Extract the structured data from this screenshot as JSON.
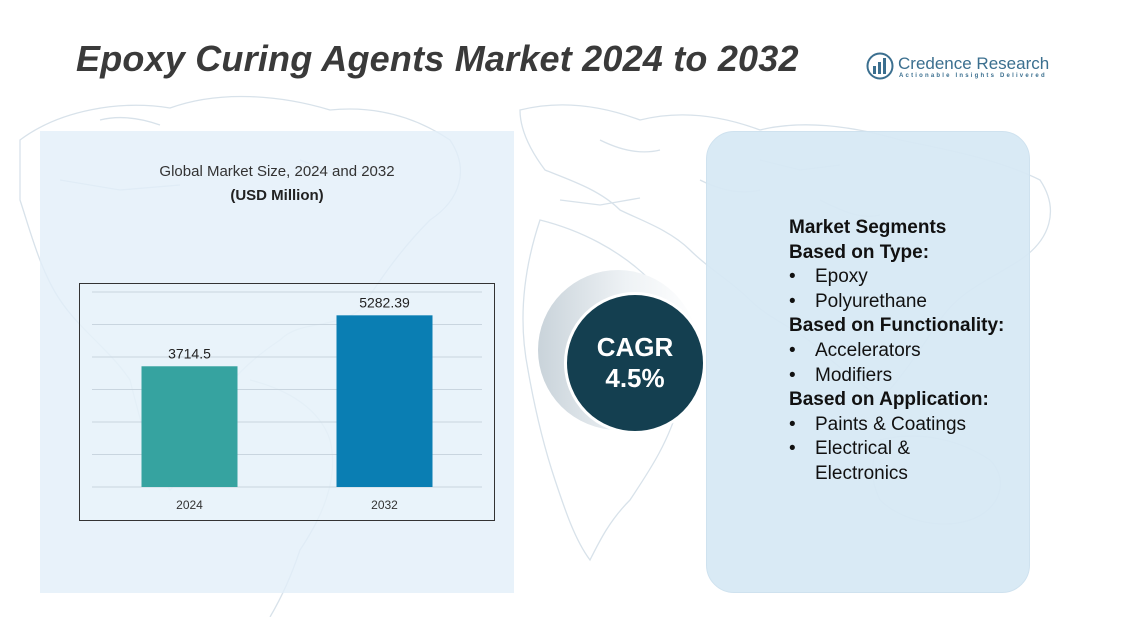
{
  "title": "Epoxy Curing Agents Market 2024 to 2032",
  "logo": {
    "name": "Credence Research",
    "tagline": "Actionable Insights Delivered",
    "icon": "bar-chart-logo-icon",
    "color": "#3b6f8f"
  },
  "background": {
    "icon": "world-map-outline"
  },
  "chart_data": {
    "type": "bar",
    "title": "Global Market Size, 2024 and 2032",
    "subtitle": "(USD Million)",
    "categories": [
      "2024",
      "2032"
    ],
    "values": [
      3714.5,
      5282.39
    ],
    "value_labels": [
      "3714.5",
      "5282.39"
    ],
    "colors": [
      "#36a3a0",
      "#0a7eb3"
    ],
    "ylim": [
      0,
      6000
    ],
    "grid": true,
    "legend": false
  },
  "cagr": {
    "label": "CAGR",
    "value": "4.5%",
    "color": "#143f50"
  },
  "segments": {
    "heading": "Market Segments",
    "bullet": "•",
    "groups": [
      {
        "title": "Based on Type:",
        "items": [
          "Epoxy",
          "Polyurethane"
        ]
      },
      {
        "title": "Based on Functionality:",
        "items": [
          "Accelerators",
          "Modifiers"
        ]
      },
      {
        "title": "Based on Application:",
        "items": [
          "Paints & Coatings",
          "Electrical &",
          "Electronics"
        ]
      }
    ]
  }
}
